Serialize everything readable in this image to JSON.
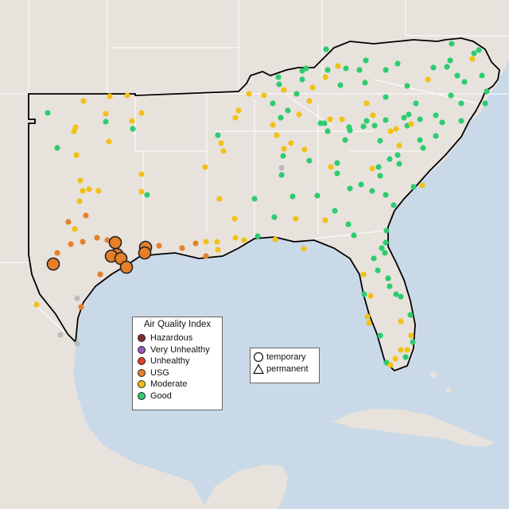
{
  "legend": {
    "title": "Air Quality Index",
    "categories": [
      {
        "label": "Hazardous",
        "color": "#7e2d2d"
      },
      {
        "label": "Very Unhealthy",
        "color": "#9b59b6"
      },
      {
        "label": "Unhealthy",
        "color": "#e4402a"
      },
      {
        "label": "USG",
        "color": "#e5802a"
      },
      {
        "label": "Moderate",
        "color": "#f2c119"
      },
      {
        "label": "Good",
        "color": "#2ecc71"
      }
    ]
  },
  "shape_legend": {
    "temporary": "temporary",
    "permanent": "permanent"
  },
  "colors": {
    "water": "#c9d9e8",
    "land": "#e8e2dd",
    "state_border": "#ffffff",
    "region_outline": "#000000",
    "missing": "#bbbbbb"
  }
}
